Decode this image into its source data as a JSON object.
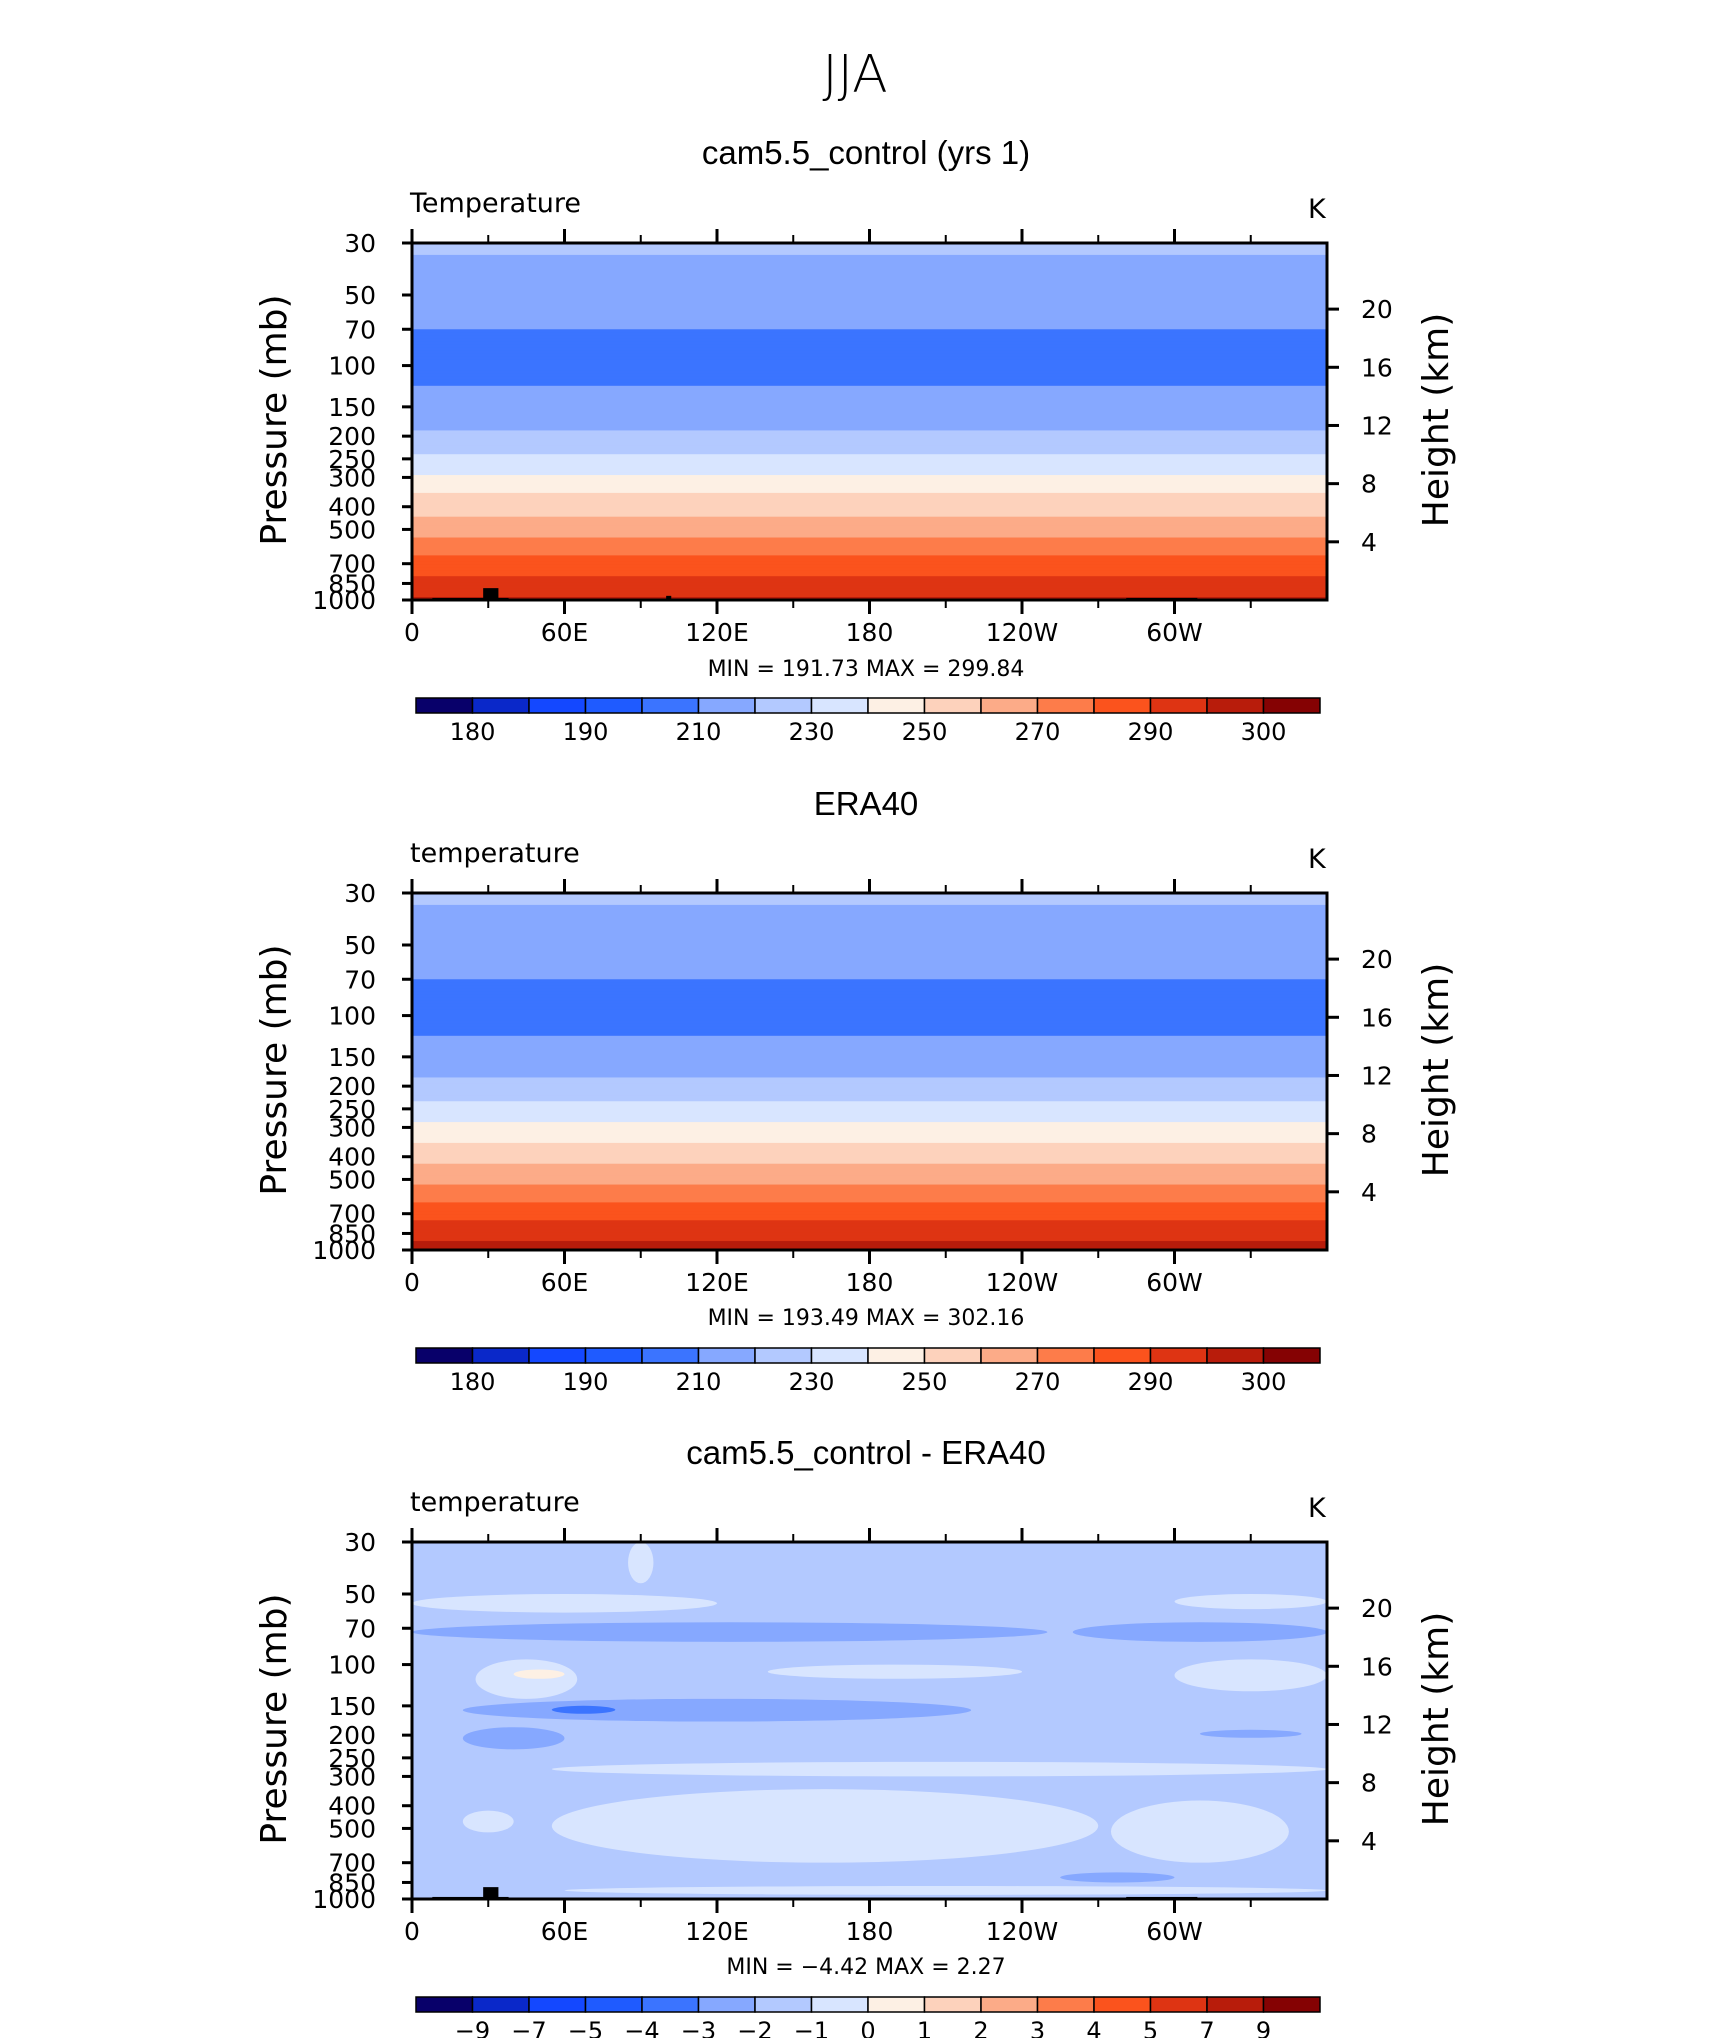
{
  "figure": {
    "suptitle": "JJA"
  },
  "colors": {
    "temperature_scale": [
      "#08006a",
      "#0a28c9",
      "#1448ff",
      "#1f5bff",
      "#3b74ff",
      "#86a8ff",
      "#b3c9ff",
      "#d8e5ff",
      "#fdf0e4",
      "#fdd2bc",
      "#fcab88",
      "#fd7c4a",
      "#fb531d",
      "#de3413",
      "#b81c0b",
      "#850203"
    ],
    "difference_scale": [
      "#08006a",
      "#0a28c9",
      "#1448ff",
      "#1f5bff",
      "#3b74ff",
      "#86a8ff",
      "#b3c9ff",
      "#d8e5ff",
      "#fdf0e4",
      "#fdd2bc",
      "#fcab88",
      "#fd7c4a",
      "#fb531d",
      "#de3413",
      "#b81c0b",
      "#850203"
    ],
    "topography": "#000000"
  },
  "chart_data": [
    {
      "type": "heatmap",
      "title": "cam5.5_control (yrs 1)",
      "left_label": "Temperature",
      "right_label": "K",
      "ylabel": "Pressure (mb)",
      "ylabel_right": "Height (km)",
      "xticks": [
        "0",
        "60E",
        "120E",
        "180",
        "120W",
        "60W"
      ],
      "yticks": [
        "30",
        "50",
        "70",
        "100",
        "150",
        "200",
        "250",
        "300",
        "400",
        "500",
        "700",
        "850",
        "1000"
      ],
      "yticks_right": [
        "20",
        "16",
        "12",
        "8",
        "4"
      ],
      "yscale": "log",
      "ylim": [
        1000,
        30
      ],
      "xlim": [
        0,
        360
      ],
      "stats": "MIN = 191.73 MAX = 299.84",
      "colorbar_labels": [
        "180",
        "190",
        "210",
        "230",
        "250",
        "270",
        "290",
        "300"
      ],
      "levels": [
        175,
        180,
        185,
        190,
        200,
        210,
        220,
        230,
        240,
        250,
        260,
        270,
        280,
        290,
        295,
        300
      ],
      "profile": [
        {
          "p": 30,
          "value": 212
        },
        {
          "p": 50,
          "value": 204
        },
        {
          "p": 70,
          "value": 200
        },
        {
          "p": 100,
          "value": 198
        },
        {
          "p": 150,
          "value": 202
        },
        {
          "p": 200,
          "value": 212
        },
        {
          "p": 250,
          "value": 222
        },
        {
          "p": 300,
          "value": 232
        },
        {
          "p": 400,
          "value": 246
        },
        {
          "p": 500,
          "value": 256
        },
        {
          "p": 700,
          "value": 274
        },
        {
          "p": 850,
          "value": 284
        },
        {
          "p": 1000,
          "value": 292
        }
      ],
      "topography": [
        {
          "lon0": 8,
          "lon1": 38,
          "p": 980
        },
        {
          "lon0": 28,
          "lon1": 34,
          "p": 890
        },
        {
          "lon0": 100,
          "lon1": 102,
          "p": 960
        },
        {
          "lon0": 281,
          "lon1": 309,
          "p": 980
        }
      ]
    },
    {
      "type": "heatmap",
      "title": "ERA40",
      "left_label": "temperature",
      "right_label": "K",
      "ylabel": "Pressure (mb)",
      "ylabel_right": "Height (km)",
      "xticks": [
        "0",
        "60E",
        "120E",
        "180",
        "120W",
        "60W"
      ],
      "yticks": [
        "30",
        "50",
        "70",
        "100",
        "150",
        "200",
        "250",
        "300",
        "400",
        "500",
        "700",
        "850",
        "1000"
      ],
      "yticks_right": [
        "20",
        "16",
        "12",
        "8",
        "4"
      ],
      "yscale": "log",
      "ylim": [
        1000,
        30
      ],
      "xlim": [
        0,
        360
      ],
      "stats": "MIN = 193.49 MAX = 302.16",
      "colorbar_labels": [
        "180",
        "190",
        "210",
        "230",
        "250",
        "270",
        "290",
        "300"
      ],
      "levels": [
        175,
        180,
        185,
        190,
        200,
        210,
        220,
        230,
        240,
        250,
        260,
        270,
        280,
        290,
        295,
        300
      ],
      "profile": [
        {
          "p": 30,
          "value": 212
        },
        {
          "p": 50,
          "value": 204
        },
        {
          "p": 70,
          "value": 200
        },
        {
          "p": 100,
          "value": 197
        },
        {
          "p": 150,
          "value": 203
        },
        {
          "p": 200,
          "value": 213
        },
        {
          "p": 250,
          "value": 223
        },
        {
          "p": 300,
          "value": 233
        },
        {
          "p": 400,
          "value": 247
        },
        {
          "p": 500,
          "value": 257
        },
        {
          "p": 700,
          "value": 276
        },
        {
          "p": 850,
          "value": 287
        },
        {
          "p": 1000,
          "value": 295
        }
      ],
      "topography": []
    },
    {
      "type": "heatmap",
      "title": "cam5.5_control - ERA40",
      "left_label": "temperature",
      "right_label": "K",
      "ylabel": "Pressure (mb)",
      "ylabel_right": "Height (km)",
      "xticks": [
        "0",
        "60E",
        "120E",
        "180",
        "120W",
        "60W"
      ],
      "yticks": [
        "30",
        "50",
        "70",
        "100",
        "150",
        "200",
        "250",
        "300",
        "400",
        "500",
        "700",
        "850",
        "1000"
      ],
      "yticks_right": [
        "20",
        "16",
        "12",
        "8",
        "4"
      ],
      "yscale": "log",
      "ylim": [
        1000,
        30
      ],
      "xlim": [
        0,
        360
      ],
      "stats": "MIN = −4.42 MAX = 2.27",
      "colorbar_labels": [
        "−9",
        "−7",
        "−5",
        "−4",
        "−3",
        "−2",
        "−1",
        "0",
        "1",
        "2",
        "3",
        "4",
        "5",
        "7",
        "9"
      ],
      "levels": [
        -9,
        -7,
        -5,
        -4,
        -3,
        -2,
        -1,
        0,
        1,
        2,
        3,
        4,
        5,
        7,
        9
      ],
      "background_value": -1.5,
      "features": [
        {
          "lon": [
            85,
            95
          ],
          "p": [
            30,
            45
          ],
          "value": -0.5
        },
        {
          "lon": [
            0,
            120
          ],
          "p": [
            50,
            60
          ],
          "value": -0.5
        },
        {
          "lon": [
            300,
            360
          ],
          "p": [
            50,
            58
          ],
          "value": -0.5
        },
        {
          "lon": [
            0,
            250
          ],
          "p": [
            66,
            80
          ],
          "value": -2.5
        },
        {
          "lon": [
            260,
            360
          ],
          "p": [
            66,
            80
          ],
          "value": -2.5
        },
        {
          "lon": [
            25,
            65
          ],
          "p": [
            95,
            140
          ],
          "value": -0.5
        },
        {
          "lon": [
            40,
            60
          ],
          "p": [
            105,
            115
          ],
          "value": 0.5
        },
        {
          "lon": [
            140,
            240
          ],
          "p": [
            100,
            115
          ],
          "value": -0.5
        },
        {
          "lon": [
            300,
            360
          ],
          "p": [
            95,
            130
          ],
          "value": -0.5
        },
        {
          "lon": [
            20,
            220
          ],
          "p": [
            140,
            175
          ],
          "value": -2.5
        },
        {
          "lon": [
            55,
            80
          ],
          "p": [
            150,
            162
          ],
          "value": -3.5
        },
        {
          "lon": [
            20,
            60
          ],
          "p": [
            185,
            230
          ],
          "value": -2.5
        },
        {
          "lon": [
            310,
            350
          ],
          "p": [
            190,
            205
          ],
          "value": -3
        },
        {
          "lon": [
            55,
            360
          ],
          "p": [
            260,
            300
          ],
          "value": -0.5
        },
        {
          "lon": [
            55,
            270
          ],
          "p": [
            340,
            700
          ],
          "value": -0.3
        },
        {
          "lon": [
            275,
            345
          ],
          "p": [
            380,
            700
          ],
          "value": -0.5
        },
        {
          "lon": [
            20,
            40
          ],
          "p": [
            420,
            520
          ],
          "value": -0.5
        },
        {
          "lon": [
            20,
            40
          ],
          "p": [
            720,
            780
          ],
          "value": -2
        },
        {
          "lon": [
            255,
            300
          ],
          "p": [
            770,
            850
          ],
          "value": -2.5
        },
        {
          "lon": [
            60,
            360
          ],
          "p": [
            880,
            960
          ],
          "value": -0.5
        }
      ],
      "topography": [
        {
          "lon0": 8,
          "lon1": 38,
          "p": 980
        },
        {
          "lon0": 28,
          "lon1": 34,
          "p": 890
        },
        {
          "lon0": 281,
          "lon1": 309,
          "p": 980
        }
      ]
    }
  ]
}
